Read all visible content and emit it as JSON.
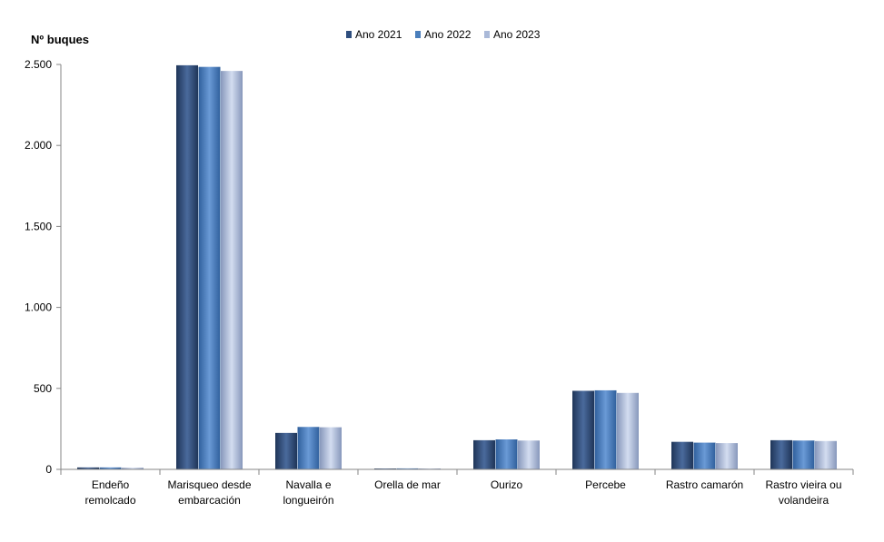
{
  "chart_data": {
    "type": "bar",
    "ylabel": "Nº  buques",
    "xlabel": "",
    "title": "",
    "ylim": [
      0,
      2500
    ],
    "yticks": [
      0,
      500,
      1000,
      1500,
      2000,
      2500
    ],
    "ytick_labels": [
      "0",
      "500",
      "1.000",
      "1.500",
      "2.000",
      "2.500"
    ],
    "legend_position": "top-center",
    "categories": [
      [
        "Endeño",
        "remolcado"
      ],
      [
        "Marisqueo desde",
        "embarcación"
      ],
      [
        "Navalla e",
        "longueirón"
      ],
      [
        "Orella de mar"
      ],
      [
        "Ourizo"
      ],
      [
        "Percebe"
      ],
      [
        "Rastro camarón"
      ],
      [
        "Rastro vieira ou",
        "volandeira"
      ]
    ],
    "series": [
      {
        "name": "Ano 2021",
        "color": "#2e4e7e",
        "values": [
          12,
          2495,
          225,
          5,
          180,
          485,
          170,
          180
        ]
      },
      {
        "name": "Ano 2022",
        "color": "#4a7ebb",
        "values": [
          12,
          2485,
          262,
          6,
          185,
          488,
          165,
          178
        ]
      },
      {
        "name": "Ano 2023",
        "color": "#aab9d8",
        "values": [
          10,
          2460,
          260,
          5,
          178,
          472,
          162,
          175
        ]
      }
    ]
  }
}
